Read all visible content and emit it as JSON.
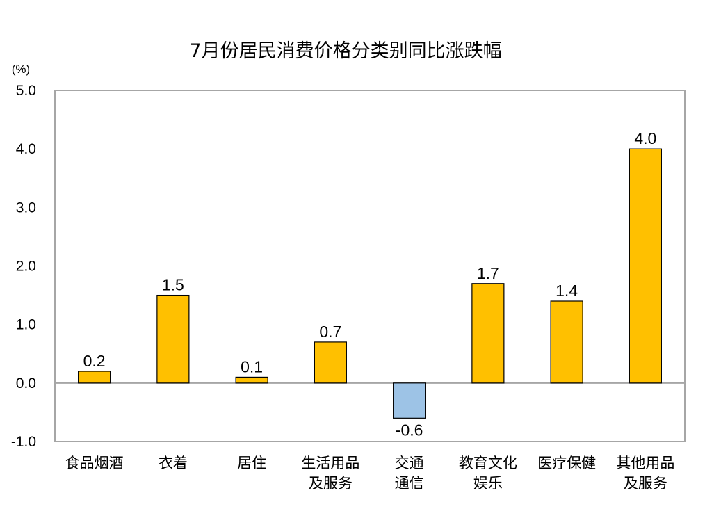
{
  "chart_data": {
    "type": "bar",
    "title": "7月份居民消费价格分类别同比涨跌幅",
    "unit": "(%)",
    "categories": [
      [
        "食品烟酒"
      ],
      [
        "衣着"
      ],
      [
        "居住"
      ],
      [
        "生活用品",
        "及服务"
      ],
      [
        "交通",
        "通信"
      ],
      [
        "教育文化",
        "娱乐"
      ],
      [
        "医疗保健"
      ],
      [
        "其他用品",
        "及服务"
      ]
    ],
    "values": [
      0.2,
      1.5,
      0.1,
      0.7,
      -0.6,
      1.7,
      1.4,
      4.0
    ],
    "value_labels": [
      "0.2",
      "1.5",
      "0.1",
      "0.7",
      "-0.6",
      "1.7",
      "1.4",
      "4.0"
    ],
    "ylim": [
      -1.0,
      5.0
    ],
    "yticks": [
      "-1.0",
      "0.0",
      "1.0",
      "2.0",
      "3.0",
      "4.0",
      "5.0"
    ],
    "colors": {
      "positive": "#FFC000",
      "negative": "#9DC3E6",
      "bar_border": "#000000",
      "plot_border": "#A6A6A6",
      "zero_line": "#A6A6A6"
    }
  }
}
